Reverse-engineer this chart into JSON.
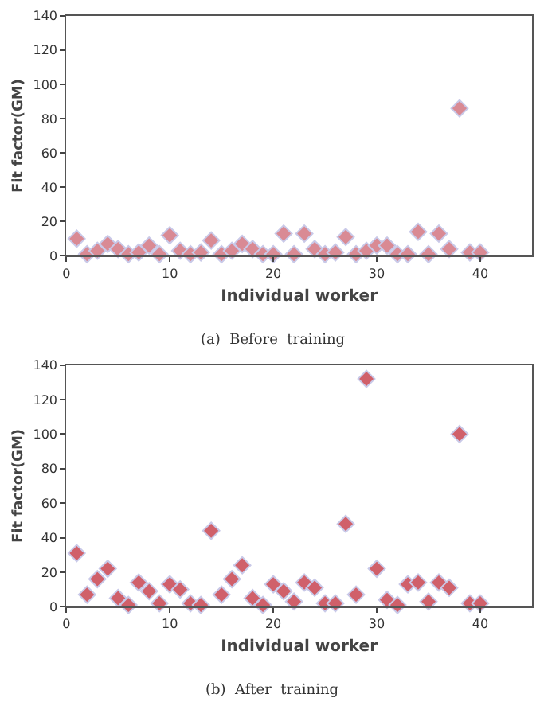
{
  "chart_data": [
    {
      "type": "scatter",
      "title": "(a)  Before  training",
      "xlabel": "Individual worker",
      "ylabel": "Fit factor(GM)",
      "x": [
        1,
        2,
        3,
        4,
        5,
        6,
        7,
        8,
        9,
        10,
        11,
        12,
        13,
        14,
        15,
        16,
        17,
        18,
        19,
        20,
        21,
        22,
        23,
        24,
        25,
        26,
        27,
        28,
        29,
        30,
        31,
        32,
        33,
        34,
        35,
        36,
        37,
        38,
        39,
        40
      ],
      "xlim": [
        0,
        45
      ],
      "xticks": [
        0,
        10,
        20,
        30,
        40
      ],
      "ylim": [
        0,
        140
      ],
      "yticks": [
        0,
        20,
        40,
        60,
        80,
        100,
        120,
        140
      ],
      "marker": "diamond",
      "grid": false,
      "series": [
        {
          "color": "#d98a94",
          "values": [
            10,
            1,
            3,
            7,
            4,
            1,
            2,
            6,
            1,
            12,
            3,
            1,
            2,
            9,
            1,
            3,
            7,
            4,
            1,
            1,
            13,
            1,
            13,
            4,
            1,
            2,
            11,
            1,
            3,
            6,
            6,
            1,
            1,
            14,
            1,
            13,
            4,
            86,
            2,
            2
          ]
        }
      ]
    },
    {
      "type": "scatter",
      "title": "(b)  After  training",
      "xlabel": "Individual worker",
      "ylabel": "Fit factor(GM)",
      "x": [
        1,
        2,
        3,
        4,
        5,
        6,
        7,
        8,
        9,
        10,
        11,
        12,
        13,
        14,
        15,
        16,
        17,
        18,
        19,
        20,
        21,
        22,
        23,
        24,
        25,
        26,
        27,
        28,
        29,
        30,
        31,
        32,
        33,
        34,
        35,
        36,
        37,
        38,
        39,
        40
      ],
      "xlim": [
        0,
        45
      ],
      "xticks": [
        0,
        10,
        20,
        30,
        40
      ],
      "ylim": [
        0,
        140
      ],
      "yticks": [
        0,
        20,
        40,
        60,
        80,
        100,
        120,
        140
      ],
      "marker": "diamond",
      "grid": false,
      "series": [
        {
          "color": "#d0606a",
          "values": [
            31,
            7,
            16,
            22,
            5,
            1,
            14,
            9,
            2,
            13,
            10,
            2,
            1,
            44,
            7,
            16,
            24,
            5,
            1,
            13,
            9,
            3,
            14,
            11,
            2,
            2,
            48,
            7,
            132,
            22,
            4,
            1,
            13,
            14,
            3,
            14,
            11,
            100,
            2,
            2
          ]
        }
      ]
    }
  ]
}
